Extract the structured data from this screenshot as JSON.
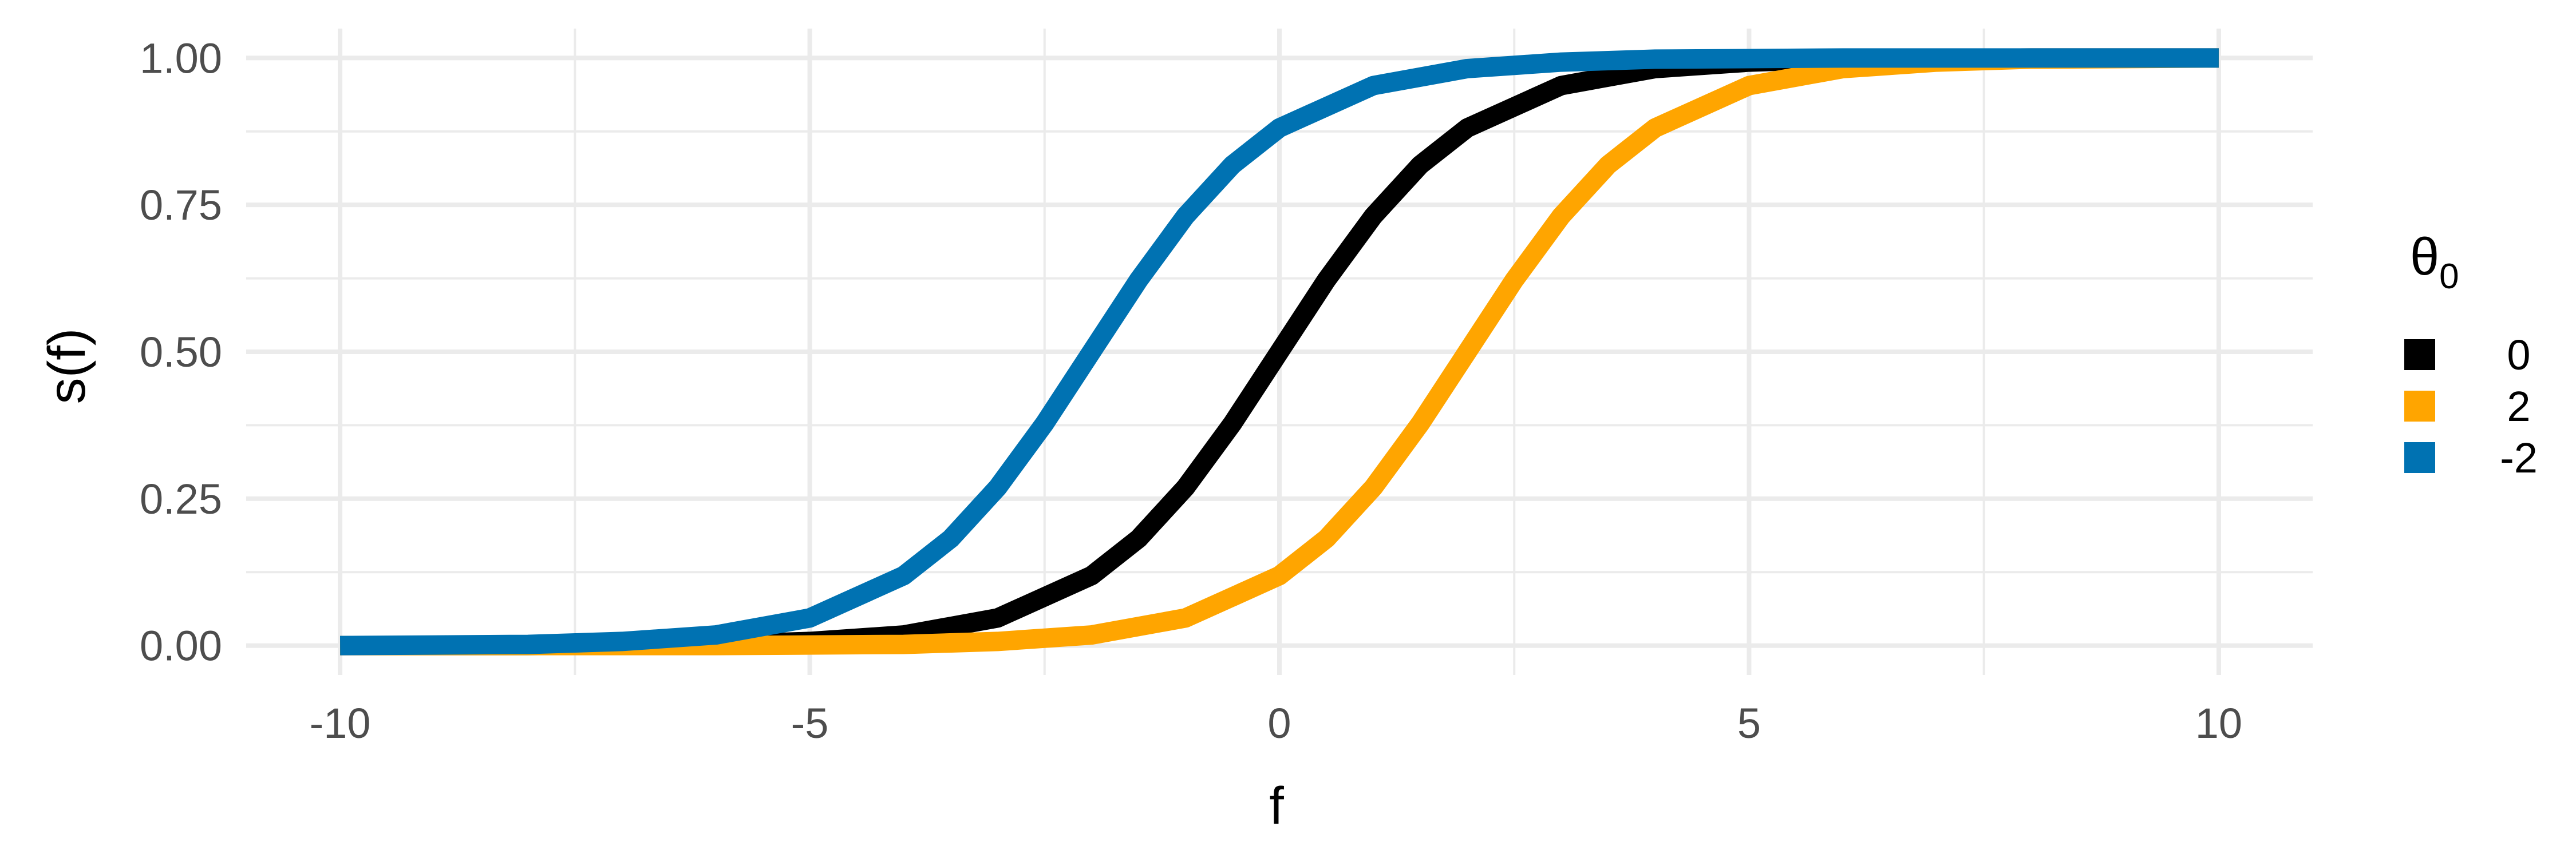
{
  "chart_data": {
    "type": "line",
    "title": "",
    "xlabel": "f",
    "ylabel": "s(f)",
    "xlim": [
      -11,
      11
    ],
    "ylim": [
      -0.05,
      1.05
    ],
    "x_ticks": [
      -10,
      -5,
      0,
      5,
      10
    ],
    "x_tick_labels": [
      "-10",
      "-5",
      "0",
      "5",
      "10"
    ],
    "y_ticks": [
      0,
      0.25,
      0.5,
      0.75,
      1
    ],
    "y_tick_labels": [
      "0.00",
      "0.25",
      "0.50",
      "0.75",
      "1.00"
    ],
    "grid": true,
    "legend": {
      "title": "θ",
      "title_subscript": "0",
      "position": "right"
    },
    "series": [
      {
        "name": "0",
        "color": "#000000",
        "x": [
          -10,
          -8,
          -6,
          -5,
          -4,
          -3,
          -2,
          -1.5,
          -1,
          -0.5,
          0,
          0.5,
          1,
          1.5,
          2,
          3,
          4,
          5,
          6,
          8,
          10
        ],
        "y": [
          0.0,
          0.0,
          0.002,
          0.007,
          0.018,
          0.047,
          0.119,
          0.182,
          0.269,
          0.378,
          0.5,
          0.622,
          0.731,
          0.818,
          0.881,
          0.953,
          0.982,
          0.993,
          0.998,
          1.0,
          1.0
        ]
      },
      {
        "name": "2",
        "color": "#FFA500",
        "x": [
          -10,
          -8,
          -6,
          -4,
          -3,
          -2,
          -1,
          0,
          0.5,
          1,
          1.5,
          2,
          2.5,
          3,
          3.5,
          4,
          5,
          6,
          7,
          8,
          10
        ],
        "y": [
          0.0,
          0.0,
          0.0,
          0.002,
          0.007,
          0.018,
          0.047,
          0.119,
          0.182,
          0.269,
          0.378,
          0.5,
          0.622,
          0.731,
          0.818,
          0.881,
          0.953,
          0.982,
          0.993,
          0.998,
          1.0
        ]
      },
      {
        "name": "-2",
        "color": "#0072B2",
        "x": [
          -10,
          -8,
          -7,
          -6,
          -5,
          -4,
          -3.5,
          -3,
          -2.5,
          -2,
          -1.5,
          -1,
          -0.5,
          0,
          1,
          2,
          3,
          4,
          6,
          8,
          10
        ],
        "y": [
          0.0,
          0.002,
          0.007,
          0.018,
          0.047,
          0.119,
          0.182,
          0.269,
          0.378,
          0.5,
          0.622,
          0.731,
          0.818,
          0.881,
          0.953,
          0.982,
          0.993,
          0.998,
          1.0,
          1.0,
          1.0
        ]
      }
    ]
  }
}
